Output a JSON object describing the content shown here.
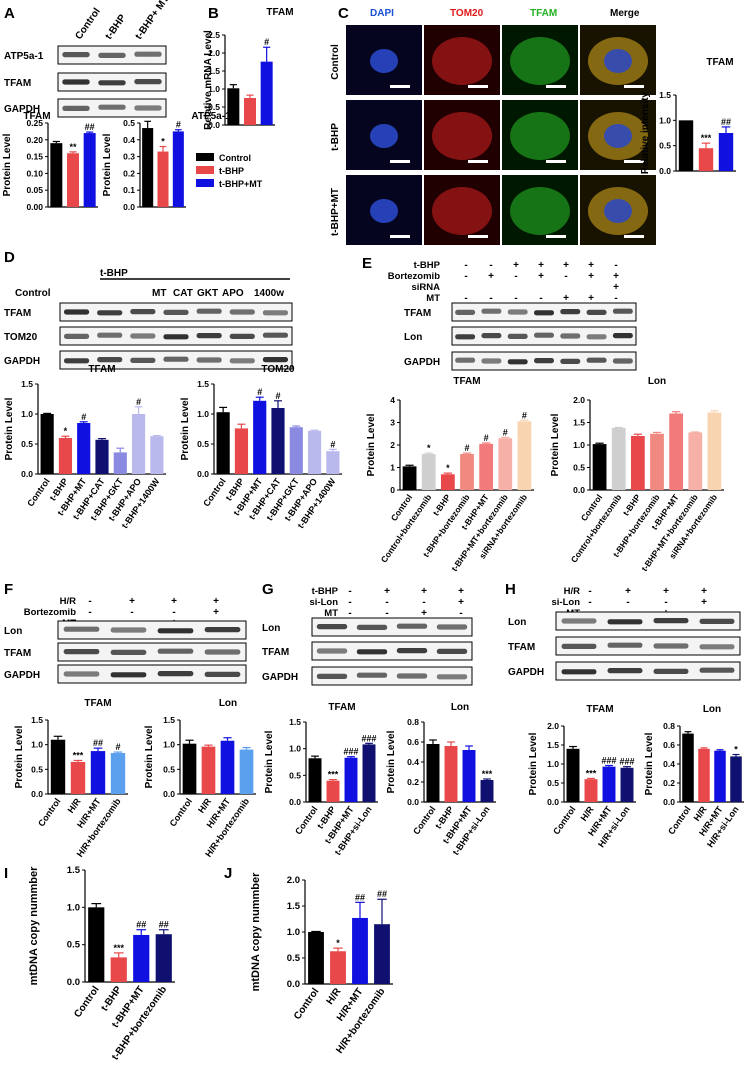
{
  "colors": {
    "black": "#000000",
    "red": "#e8484a",
    "blue": "#1010e0",
    "navy": "#101070",
    "lightblue": "#5aa0ee",
    "grey": "#cfcfcf",
    "salmon": "#f08a80",
    "pink": "#f7b0a8",
    "rose": "#f27a7a",
    "peach": "#f8d4b0",
    "lightpurple": "#b9b9ee",
    "purple": "#8a8ae0",
    "slate": "#8080c0"
  },
  "panels": [
    {
      "id": "A",
      "letter": "A",
      "bands": [
        "ATP5a-1",
        "TFAM",
        "GAPDH"
      ],
      "lanes": [
        "Control",
        "t-BHP",
        "t-BHP+ MT"
      ],
      "legend": [
        "Control",
        "t-BHP",
        "t-BHP+MT"
      ]
    },
    {
      "id": "B",
      "letter": "B"
    },
    {
      "id": "C",
      "letter": "C",
      "channels": [
        "DAPI",
        "TOM20",
        "TFAM",
        "Merge"
      ],
      "rows": [
        "Control",
        "t-BHP",
        "t-BHP+MT"
      ]
    },
    {
      "id": "D",
      "letter": "D",
      "bands": [
        "TFAM",
        "TOM20",
        "GAPDH"
      ],
      "top": "t-BHP",
      "lanes": [
        "Control",
        "MT",
        "CAT",
        "GKT",
        "APO",
        "1400w"
      ]
    },
    {
      "id": "E",
      "letter": "E",
      "rows": [
        {
          "label": "t-BHP",
          "marks": [
            "-",
            "-",
            "+",
            "+",
            "+",
            "+",
            "-"
          ]
        },
        {
          "label": "Bortezomib",
          "marks": [
            "-",
            "+",
            "-",
            "+",
            "-",
            "+",
            "+"
          ]
        },
        {
          "label": "siRNA",
          "marks": [
            "",
            "",
            "",
            "",
            "",
            "",
            "+"
          ]
        },
        {
          "label": "MT",
          "marks": [
            "-",
            "-",
            "-",
            "-",
            "+",
            "+",
            "-"
          ]
        }
      ],
      "bands": [
        "TFAM",
        "Lon",
        "GAPDH"
      ]
    },
    {
      "id": "F",
      "letter": "F",
      "rows": [
        {
          "label": "H/R",
          "marks": [
            "-",
            "+",
            "+",
            "+"
          ]
        },
        {
          "label": "Bortezomib",
          "marks": [
            "-",
            "-",
            "-",
            "+"
          ]
        },
        {
          "label": "MT",
          "marks": [
            "-",
            "-",
            "+",
            "-"
          ]
        }
      ],
      "bands": [
        "Lon",
        "TFAM",
        "GAPDH"
      ]
    },
    {
      "id": "G",
      "letter": "G",
      "rows": [
        {
          "label": "t-BHP",
          "marks": [
            "-",
            "+",
            "+",
            "+"
          ]
        },
        {
          "label": "si-Lon",
          "marks": [
            "-",
            "-",
            "-",
            "+"
          ]
        },
        {
          "label": "MT",
          "marks": [
            "-",
            "-",
            "+",
            "-"
          ]
        }
      ],
      "bands": [
        "Lon",
        "TFAM",
        "GAPDH"
      ]
    },
    {
      "id": "H",
      "letter": "H",
      "rows": [
        {
          "label": "H/R",
          "marks": [
            "-",
            "+",
            "+",
            "+"
          ]
        },
        {
          "label": "si-Lon",
          "marks": [
            "-",
            "-",
            "-",
            "+"
          ]
        },
        {
          "label": "MT",
          "marks": [
            "-",
            "-",
            "+",
            "-"
          ]
        }
      ],
      "bands": [
        "Lon",
        "TFAM",
        "GAPDH"
      ]
    },
    {
      "id": "I",
      "letter": "I"
    },
    {
      "id": "J",
      "letter": "J"
    }
  ],
  "chart_data": [
    {
      "id": "A-TFAM",
      "type": "bar",
      "title": "TFAM",
      "ylabel": "Protein Level",
      "ylim": [
        0,
        0.25
      ],
      "ticks": [
        "0.00",
        "0.05",
        "0.10",
        "0.15",
        "0.20",
        "0.25"
      ],
      "categories": [
        "Control",
        "t-BHP",
        "t-BHP+MT"
      ],
      "values": [
        0.19,
        0.16,
        0.22
      ],
      "errors": [
        0.005,
        0.004,
        0.003
      ],
      "annotations": [
        "",
        "**",
        "##"
      ],
      "colors": [
        "black",
        "red",
        "blue"
      ]
    },
    {
      "id": "A-ATP",
      "type": "bar",
      "title": "ATP5a-1",
      "ylabel": "Protein Level",
      "ylim": [
        0,
        0.5
      ],
      "ticks": [
        "0.0",
        "0.1",
        "0.2",
        "0.3",
        "0.4",
        "0.5"
      ],
      "categories": [
        "Control",
        "t-BHP",
        "t-BHP+MT"
      ],
      "values": [
        0.47,
        0.33,
        0.45
      ],
      "errors": [
        0.04,
        0.03,
        0.01
      ],
      "annotations": [
        "",
        "*",
        "#"
      ],
      "colors": [
        "black",
        "red",
        "blue"
      ]
    },
    {
      "id": "B",
      "type": "bar",
      "title": "TFAM",
      "ylabel": "Relative mRNA Level",
      "ylim": [
        0,
        2.5
      ],
      "ticks": [
        "0.0",
        "0.5",
        "1.0",
        "1.5",
        "2.0",
        "2.5"
      ],
      "categories": [
        "Control",
        "t-BHP",
        "t-BHP+MT"
      ],
      "values": [
        1.02,
        0.75,
        1.76
      ],
      "errors": [
        0.1,
        0.08,
        0.4
      ],
      "annotations": [
        "",
        "",
        "#"
      ],
      "colors": [
        "black",
        "red",
        "blue"
      ]
    },
    {
      "id": "C",
      "type": "bar",
      "title": "TFAM",
      "ylabel": "Relative intensity",
      "ylim": [
        0,
        1.5
      ],
      "ticks": [
        "0.0",
        "0.5",
        "1.0",
        "1.5"
      ],
      "categories": [
        "Control",
        "t-BHP",
        "t-BHP+MT"
      ],
      "values": [
        1.0,
        0.45,
        0.75
      ],
      "errors": [
        0.0,
        0.1,
        0.12
      ],
      "annotations": [
        "",
        "***",
        "##"
      ],
      "colors": [
        "black",
        "red",
        "blue"
      ]
    },
    {
      "id": "D-TFAM",
      "type": "bar",
      "title": "TFAM",
      "ylabel": "Protein Level",
      "ylim": [
        0,
        1.5
      ],
      "ticks": [
        "0.0",
        "0.5",
        "1.0",
        "1.5"
      ],
      "categories": [
        "Control",
        "t-BHP",
        "t-BHP+MT",
        "t-BHP+CAT",
        "t-BHP+GKT",
        "t-BHP+APO",
        "t-BHP+1400W"
      ],
      "values": [
        1.0,
        0.6,
        0.85,
        0.57,
        0.36,
        1.0,
        0.63
      ],
      "errors": [
        0.01,
        0.03,
        0.02,
        0.02,
        0.07,
        0.12,
        0.01
      ],
      "annotations": [
        "",
        "*",
        "#",
        "",
        "",
        "#",
        ""
      ],
      "colors": [
        "black",
        "red",
        "blue",
        "navy",
        "purple",
        "lightpurple",
        "lightpurple"
      ]
    },
    {
      "id": "D-TOM20",
      "type": "bar",
      "title": "TOM20",
      "ylabel": "Protein Level",
      "ylim": [
        0,
        1.5
      ],
      "ticks": [
        "0.0",
        "0.5",
        "1.0",
        "1.5"
      ],
      "categories": [
        "Control",
        "t-BHP",
        "t-BHP+MT",
        "t-BHP+CAT",
        "t-BHP+GKT",
        "t-BHP+APO",
        "t-BHP+1400W"
      ],
      "values": [
        1.03,
        0.76,
        1.22,
        1.1,
        0.78,
        0.72,
        0.38
      ],
      "errors": [
        0.08,
        0.07,
        0.06,
        0.12,
        0.02,
        0.01,
        0.03
      ],
      "annotations": [
        "",
        "",
        "#",
        "#",
        "",
        "",
        "#"
      ],
      "colors": [
        "black",
        "red",
        "blue",
        "navy",
        "purple",
        "lightpurple",
        "lightpurple"
      ]
    },
    {
      "id": "E-TFAM",
      "type": "bar",
      "title": "TFAM",
      "ylabel": "Protein Level",
      "ylim": [
        0,
        4
      ],
      "ticks": [
        "0",
        "1",
        "2",
        "3",
        "4"
      ],
      "categories": [
        "Control",
        "Control+bortezomib",
        "t-BHP",
        "t-BHP+bortezomib",
        "t-BHP+MT",
        "t-BHP+MT+bortezomib",
        "siRNA+bortezomib"
      ],
      "values": [
        1.05,
        1.6,
        0.7,
        1.6,
        2.05,
        2.3,
        3.05
      ],
      "errors": [
        0.05,
        0.04,
        0.05,
        0.04,
        0.04,
        0.04,
        0.05
      ],
      "annotations": [
        "",
        "*",
        "*",
        "#",
        "#",
        "#",
        "#"
      ],
      "colors": [
        "black",
        "grey",
        "red",
        "salmon",
        "rose",
        "pink",
        "peach"
      ]
    },
    {
      "id": "E-Lon",
      "type": "bar",
      "title": "Lon",
      "ylabel": "Protein Level",
      "ylim": [
        0,
        2
      ],
      "ticks": [
        "0.0",
        "0.5",
        "1.0",
        "1.5",
        "2.0"
      ],
      "categories": [
        "Control",
        "Control+bortezomib",
        "t-BHP",
        "t-BHP+bortezomib",
        "t-BHP+MT",
        "t-BHP+MT+bortezomib",
        "siRNA+bortezomib"
      ],
      "values": [
        1.02,
        1.38,
        1.2,
        1.25,
        1.7,
        1.28,
        1.72
      ],
      "errors": [
        0.02,
        0.01,
        0.04,
        0.03,
        0.04,
        0.01,
        0.04
      ],
      "annotations": [
        "",
        "",
        "",
        "",
        "",
        "",
        ""
      ],
      "colors": [
        "black",
        "grey",
        "red",
        "salmon",
        "rose",
        "pink",
        "peach"
      ]
    },
    {
      "id": "F-TFAM",
      "type": "bar",
      "title": "TFAM",
      "ylabel": "Protein Level",
      "ylim": [
        0,
        1.5
      ],
      "ticks": [
        "0.0",
        "0.5",
        "1.0",
        "1.5"
      ],
      "categories": [
        "Control",
        "H/R",
        "H/R+MT",
        "H/R+bortezomib"
      ],
      "values": [
        1.1,
        0.65,
        0.87,
        0.83
      ],
      "errors": [
        0.07,
        0.03,
        0.06,
        0.02
      ],
      "annotations": [
        "",
        "***",
        "##",
        "#"
      ],
      "colors": [
        "black",
        "red",
        "blue",
        "lightblue"
      ]
    },
    {
      "id": "F-Lon",
      "type": "bar",
      "title": "Lon",
      "ylabel": "Protein Level",
      "ylim": [
        0,
        1.5
      ],
      "ticks": [
        "0.0",
        "0.5",
        "1.0",
        "1.5"
      ],
      "categories": [
        "Control",
        "H/R",
        "H/R+MT",
        "H/R+bortezomib"
      ],
      "values": [
        1.02,
        0.96,
        1.08,
        0.9
      ],
      "errors": [
        0.07,
        0.03,
        0.06,
        0.04
      ],
      "annotations": [
        "",
        "",
        "",
        ""
      ],
      "colors": [
        "black",
        "red",
        "blue",
        "lightblue"
      ]
    },
    {
      "id": "G-TFAM",
      "type": "bar",
      "title": "TFAM",
      "ylabel": "Protein Level",
      "ylim": [
        0,
        1.5
      ],
      "ticks": [
        "0.0",
        "0.5",
        "1.0",
        "1.5"
      ],
      "categories": [
        "Control",
        "t-BHP",
        "t-BHP+MT",
        "t-BHP+si-Lon"
      ],
      "values": [
        0.82,
        0.4,
        0.83,
        1.08
      ],
      "errors": [
        0.04,
        0.02,
        0.02,
        0.02
      ],
      "annotations": [
        "",
        "***",
        "###",
        "###"
      ],
      "colors": [
        "black",
        "red",
        "blue",
        "navy"
      ]
    },
    {
      "id": "G-Lon",
      "type": "bar",
      "title": "Lon",
      "ylabel": "Protein Level",
      "ylim": [
        0,
        0.8
      ],
      "ticks": [
        "0.0",
        "0.2",
        "0.4",
        "0.6",
        "0.8"
      ],
      "categories": [
        "Control",
        "t-BHP",
        "t-BHP+MT",
        "t-BHP+si-Lon"
      ],
      "values": [
        0.58,
        0.56,
        0.52,
        0.22
      ],
      "errors": [
        0.04,
        0.04,
        0.04,
        0.01
      ],
      "annotations": [
        "",
        "",
        "",
        "***"
      ],
      "colors": [
        "black",
        "red",
        "blue",
        "navy"
      ]
    },
    {
      "id": "H-TFAM",
      "type": "bar",
      "title": "TFAM",
      "ylabel": "Protein Level",
      "ylim": [
        0,
        2
      ],
      "ticks": [
        "0.0",
        "0.5",
        "1.0",
        "1.5",
        "2.0"
      ],
      "categories": [
        "Control",
        "H/R",
        "H/R+MT",
        "H/R+si-Lon"
      ],
      "values": [
        1.4,
        0.6,
        0.93,
        0.9
      ],
      "errors": [
        0.06,
        0.02,
        0.03,
        0.03
      ],
      "annotations": [
        "",
        "***",
        "###",
        "###"
      ],
      "colors": [
        "black",
        "red",
        "blue",
        "navy"
      ]
    },
    {
      "id": "H-Lon",
      "type": "bar",
      "title": "Lon",
      "ylabel": "Protein Level",
      "ylim": [
        0,
        0.8
      ],
      "ticks": [
        "0.0",
        "0.2",
        "0.4",
        "0.6",
        "0.8"
      ],
      "categories": [
        "Control",
        "H/R",
        "H/R+MT",
        "H/R+si-Lon"
      ],
      "values": [
        0.72,
        0.56,
        0.54,
        0.48
      ],
      "errors": [
        0.02,
        0.01,
        0.01,
        0.02
      ],
      "annotations": [
        "",
        "",
        "",
        "*"
      ],
      "colors": [
        "black",
        "red",
        "blue",
        "navy"
      ]
    },
    {
      "id": "I",
      "type": "bar",
      "title": "",
      "ylabel": "mtDNA copy nummber",
      "ylim": [
        0,
        1.5
      ],
      "ticks": [
        "0.0",
        "0.5",
        "1.0",
        "1.5"
      ],
      "categories": [
        "Control",
        "t-BHP",
        "t-BHP+MT",
        "t-BHP+bortezomib"
      ],
      "values": [
        1.0,
        0.33,
        0.63,
        0.64
      ],
      "errors": [
        0.05,
        0.06,
        0.07,
        0.06
      ],
      "annotations": [
        "",
        "***",
        "##",
        "##"
      ],
      "colors": [
        "black",
        "red",
        "blue",
        "navy"
      ]
    },
    {
      "id": "J",
      "type": "bar",
      "title": "",
      "ylabel": "mtDNA copy nummber",
      "ylim": [
        0,
        2
      ],
      "ticks": [
        "0.0",
        "0.5",
        "1.0",
        "1.5",
        "2.0"
      ],
      "categories": [
        "Control",
        "H/R",
        "H/R+MT",
        "H/R+bortezomib"
      ],
      "values": [
        1.0,
        0.63,
        1.27,
        1.15
      ],
      "errors": [
        0.01,
        0.06,
        0.3,
        0.48
      ],
      "annotations": [
        "",
        "*",
        "##",
        "##"
      ],
      "colors": [
        "black",
        "red",
        "blue",
        "navy"
      ]
    }
  ]
}
